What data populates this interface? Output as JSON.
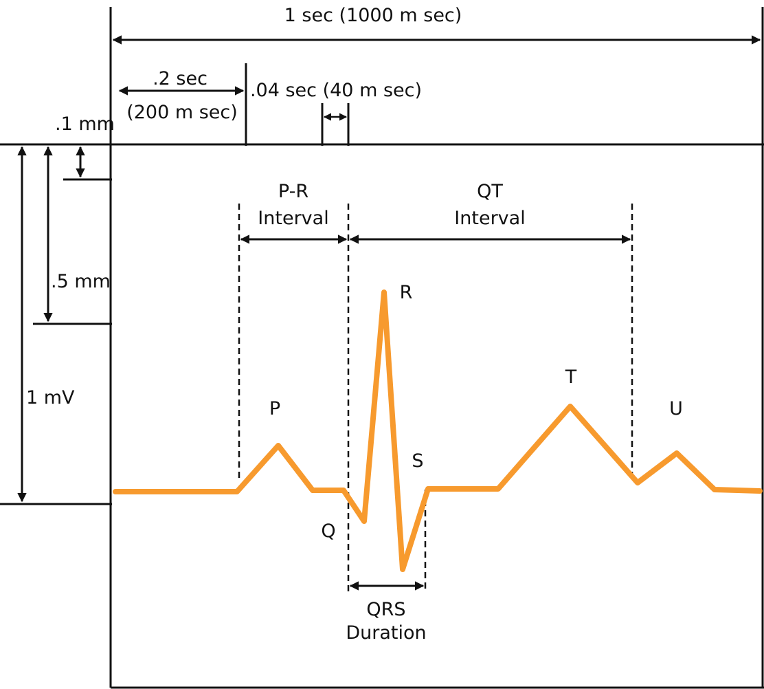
{
  "colors": {
    "ink": "#111111",
    "waveform": "#f79a2e",
    "background": "#ffffff"
  },
  "labels": {
    "one_sec": "1 sec (1000 m sec)",
    "point_two_sec": ".2 sec",
    "two_hundred_msec": "(200 m sec)",
    "point_zero_four_sec": ".04 sec (40 m sec)",
    "point_one_mm": ".1 mm",
    "point_five_mm": ".5 mm",
    "one_mv": "1 mV",
    "pr_interval_line1": "P-R",
    "pr_interval_line2": "Interval",
    "qt_interval_line1": "QT",
    "qt_interval_line2": "Interval",
    "qrs_line1": "QRS",
    "qrs_line2": "Duration"
  },
  "waves": {
    "p": "P",
    "q": "Q",
    "r": "R",
    "s": "S",
    "t": "T",
    "u": "U"
  }
}
